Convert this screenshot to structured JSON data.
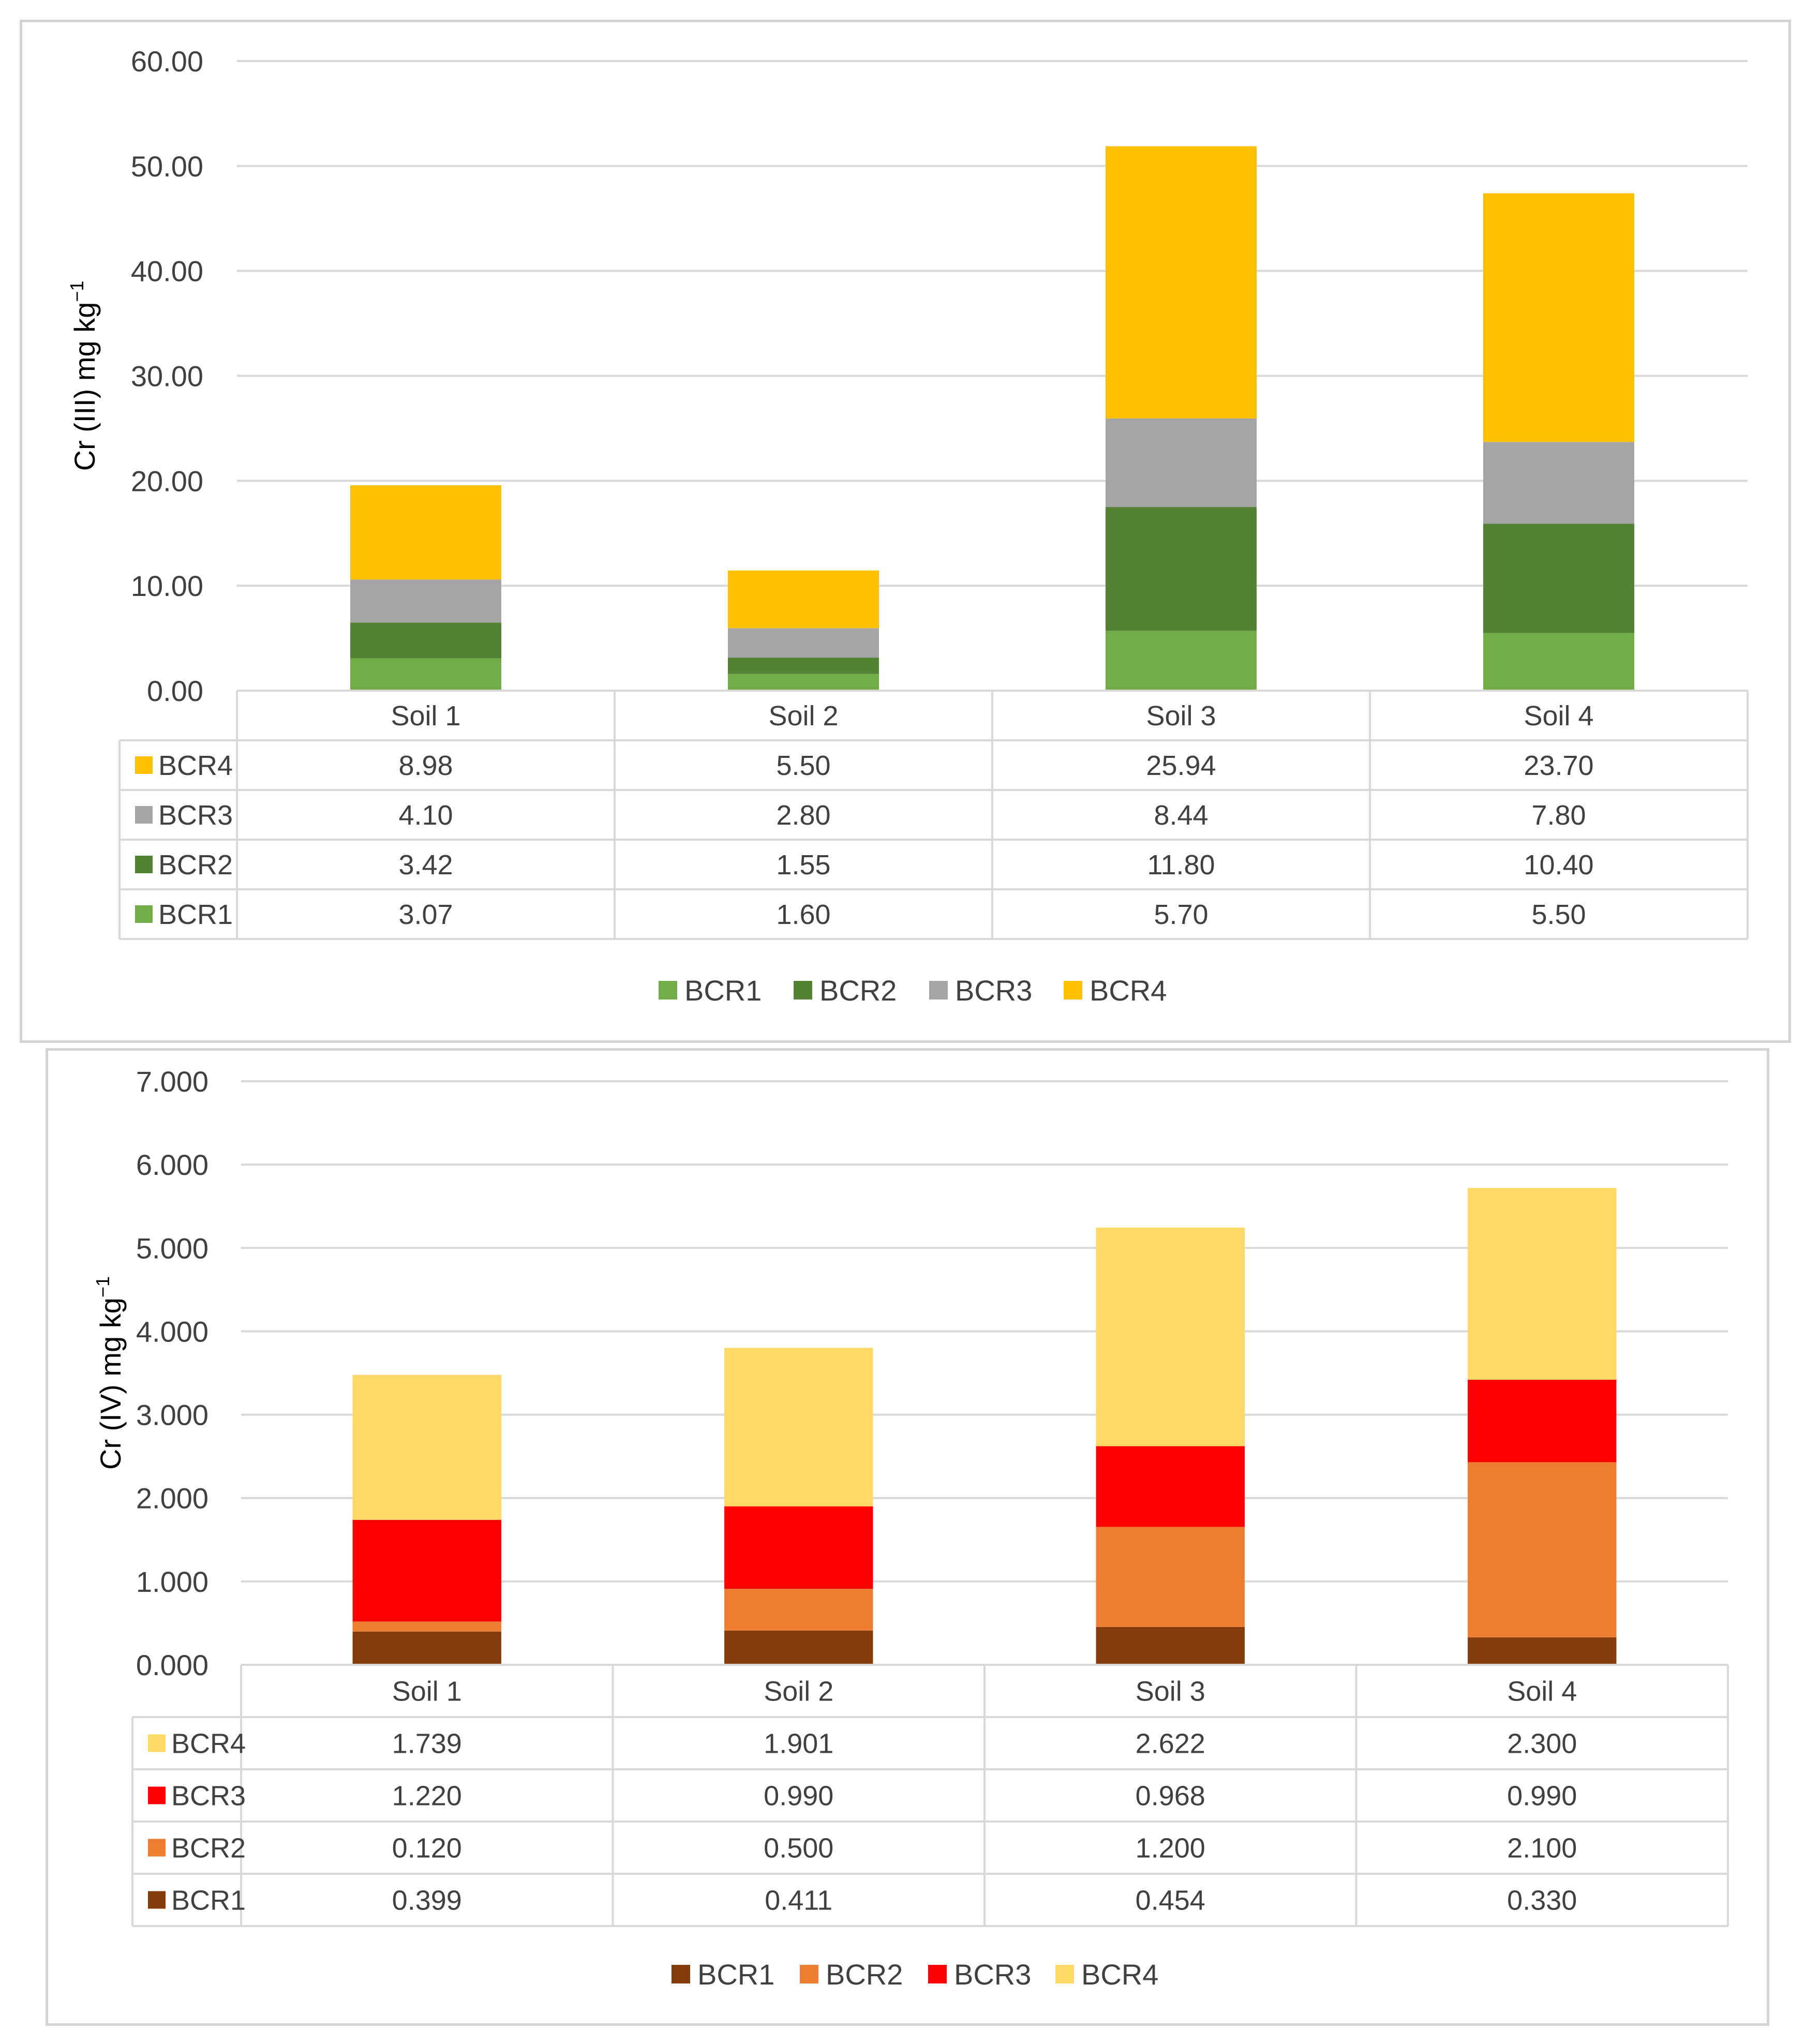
{
  "chart_data": [
    {
      "type": "bar",
      "stacked": true,
      "categories": [
        "Soil 1",
        "Soil 2",
        "Soil 3",
        "Soil 4"
      ],
      "ylabel_main": "Cr (III) mg kg",
      "ylabel_sup": "−1",
      "ylim": [
        0,
        60
      ],
      "yticks": [
        "0.00",
        "10.00",
        "20.00",
        "30.00",
        "40.00",
        "50.00",
        "60.00"
      ],
      "legend_position": "bottom",
      "grid": true,
      "series": [
        {
          "name": "BCR1",
          "color": "#70ad47",
          "values": [
            3.07,
            1.6,
            5.7,
            5.5
          ],
          "labels": [
            "3.07",
            "1.60",
            "5.70",
            "5.50"
          ]
        },
        {
          "name": "BCR2",
          "color": "#548235",
          "values": [
            3.42,
            1.55,
            11.8,
            10.4
          ],
          "labels": [
            "3.42",
            "1.55",
            "11.80",
            "10.40"
          ]
        },
        {
          "name": "BCR3",
          "color": "#a5a5a5",
          "values": [
            4.1,
            2.8,
            8.44,
            7.8
          ],
          "labels": [
            "4.10",
            "2.80",
            "8.44",
            "7.80"
          ]
        },
        {
          "name": "BCR4",
          "color": "#ffc000",
          "values": [
            8.98,
            5.5,
            25.94,
            23.7
          ],
          "labels": [
            "8.98",
            "5.50",
            "25.94",
            "23.70"
          ]
        }
      ]
    },
    {
      "type": "bar",
      "stacked": true,
      "categories": [
        "Soil 1",
        "Soil 2",
        "Soil 3",
        "Soil 4"
      ],
      "ylabel_main": "Cr (IV) mg kg",
      "ylabel_sup": "−1",
      "ylim": [
        0,
        7
      ],
      "yticks": [
        "0.000",
        "1.000",
        "2.000",
        "3.000",
        "4.000",
        "5.000",
        "6.000",
        "7.000"
      ],
      "legend_position": "bottom",
      "grid": true,
      "series": [
        {
          "name": "BCR1",
          "color": "#843c0c",
          "values": [
            0.399,
            0.411,
            0.454,
            0.33
          ],
          "labels": [
            "0.399",
            "0.411",
            "0.454",
            "0.330"
          ]
        },
        {
          "name": "BCR2",
          "color": "#ed7d31",
          "values": [
            0.12,
            0.5,
            1.2,
            2.1
          ],
          "labels": [
            "0.120",
            "0.500",
            "1.200",
            "2.100"
          ]
        },
        {
          "name": "BCR3",
          "color": "#ff0000",
          "values": [
            1.22,
            0.99,
            0.968,
            0.99
          ],
          "labels": [
            "1.220",
            "0.990",
            "0.968",
            "0.990"
          ]
        },
        {
          "name": "BCR4",
          "color": "#ffd966",
          "values": [
            1.739,
            1.901,
            2.622,
            2.3
          ],
          "labels": [
            "1.739",
            "1.901",
            "2.622",
            "2.300"
          ]
        }
      ]
    }
  ]
}
